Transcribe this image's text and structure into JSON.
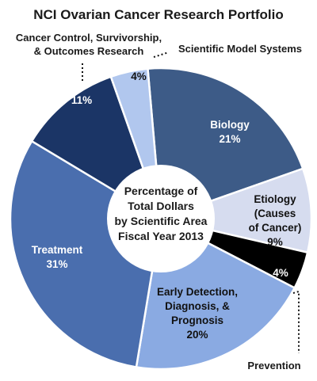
{
  "chart_data": {
    "type": "pie",
    "title": "NCI Ovarian Cancer Research Portfolio",
    "center_label": [
      "Percentage of",
      "Total Dollars",
      "by Scientific Area",
      "Fiscal Year 2013"
    ],
    "slices": [
      {
        "name": "Biology",
        "value": 21,
        "pct_label": "21%",
        "color": "#3d5b87",
        "label_lines": [
          "Biology"
        ]
      },
      {
        "name": "Etiology (Causes of Cancer)",
        "value": 9,
        "pct_label": "9%",
        "color": "#d6dcef",
        "label_lines": [
          "Etiology",
          "(Causes",
          "of Cancer)"
        ]
      },
      {
        "name": "Prevention",
        "value": 4,
        "pct_label": "4%",
        "color": "#000000",
        "label_lines": [
          "Prevention"
        ]
      },
      {
        "name": "Early Detection, Diagnosis, & Prognosis",
        "value": 20,
        "pct_label": "20%",
        "color": "#8aaae2",
        "label_lines": [
          "Early Detection,",
          "Diagnosis, &",
          "Prognosis"
        ]
      },
      {
        "name": "Treatment",
        "value": 31,
        "pct_label": "31%",
        "color": "#4a6eae",
        "label_lines": [
          "Treatment"
        ]
      },
      {
        "name": "Cancer Control, Survivorship, & Outcomes Research",
        "value": 11,
        "pct_label": "11%",
        "color": "#1b3566",
        "label_lines": [
          "Cancer Control, Survivorship,",
          "& Outcomes Research"
        ]
      },
      {
        "name": "Scientific Model Systems",
        "value": 4,
        "pct_label": "4%",
        "color": "#b1c7ee",
        "label_lines": [
          "Scientific Model Systems"
        ]
      }
    ]
  }
}
